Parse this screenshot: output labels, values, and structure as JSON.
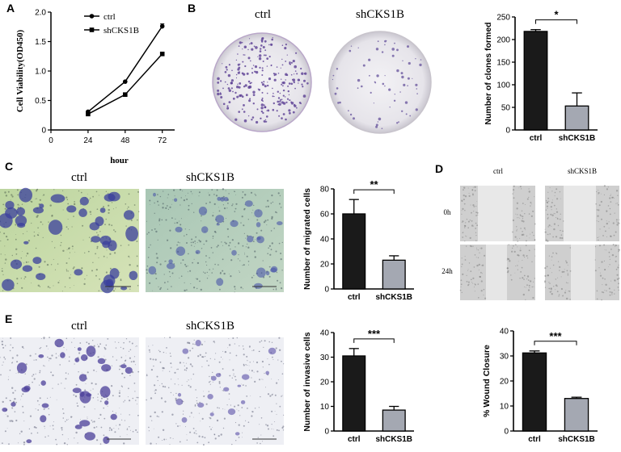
{
  "panels": {
    "A": {
      "letter": "A"
    },
    "B": {
      "letter": "B",
      "micro_labels": [
        "ctrl",
        "shCKS1B"
      ]
    },
    "C": {
      "letter": "C",
      "micro_labels": [
        "ctrl",
        "shCKS1B"
      ]
    },
    "D": {
      "letter": "D",
      "col_labels": [
        "ctrl",
        "shCKS1B"
      ],
      "row_labels": [
        "0h",
        "24h"
      ]
    },
    "E": {
      "letter": "E",
      "micro_labels": [
        "ctrl",
        "shCKS1B"
      ]
    }
  },
  "chart_data": [
    {
      "id": "A",
      "type": "line",
      "xlabel": "hour",
      "ylabel": "Cell Viability(OD450)",
      "x": [
        24,
        48,
        72
      ],
      "xlim": [
        0,
        80
      ],
      "ylim": [
        0,
        2.0
      ],
      "xticks": [
        0,
        24,
        48,
        72
      ],
      "yticks": [
        0.0,
        0.5,
        1.0,
        1.5,
        2.0
      ],
      "ytick_labels": [
        "0",
        "0.5",
        "1.0",
        "1.5",
        "2.0"
      ],
      "legend_position": "top-left",
      "series": [
        {
          "name": "ctrl",
          "marker": "circle",
          "values": [
            0.31,
            0.82,
            1.76
          ],
          "errors": [
            0.01,
            0.01,
            0.04
          ]
        },
        {
          "name": "shCKS1B",
          "marker": "square",
          "values": [
            0.27,
            0.6,
            1.29
          ],
          "errors": [
            0.01,
            0.01,
            0.02
          ]
        }
      ]
    },
    {
      "id": "B",
      "type": "bar",
      "ylabel": "Number of clones formed",
      "categories": [
        "ctrl",
        "shCKS1B"
      ],
      "values": [
        218,
        53
      ],
      "errors": [
        4,
        29
      ],
      "colors": [
        "#1a1a1a",
        "#a4a8b2"
      ],
      "ylim": [
        0,
        250
      ],
      "yticks": [
        0,
        50,
        100,
        150,
        200,
        250
      ],
      "significance": "*"
    },
    {
      "id": "C",
      "type": "bar",
      "ylabel": "Number of migrated cells",
      "categories": [
        "ctrl",
        "shCKS1B"
      ],
      "values": [
        60,
        23
      ],
      "errors": [
        11.5,
        3.5
      ],
      "colors": [
        "#1a1a1a",
        "#a4a8b2"
      ],
      "ylim": [
        0,
        80
      ],
      "yticks": [
        0,
        20,
        40,
        60,
        80
      ],
      "significance": "**"
    },
    {
      "id": "E",
      "type": "bar",
      "ylabel": "Number of invasive cells",
      "categories": [
        "ctrl",
        "shCKS1B"
      ],
      "values": [
        30.5,
        8.5
      ],
      "errors": [
        3,
        1.5
      ],
      "colors": [
        "#1a1a1a",
        "#a4a8b2"
      ],
      "ylim": [
        0,
        40
      ],
      "yticks": [
        0,
        10,
        20,
        30,
        40
      ],
      "significance": "***"
    },
    {
      "id": "D",
      "type": "bar",
      "ylabel": "% Wound Closure",
      "categories": [
        "ctrl",
        "shCKS1B"
      ],
      "values": [
        31.2,
        13
      ],
      "errors": [
        0.8,
        0.5
      ],
      "colors": [
        "#1a1a1a",
        "#a4a8b2"
      ],
      "ylim": [
        0,
        40
      ],
      "yticks": [
        0,
        10,
        20,
        30,
        40
      ],
      "significance": "***"
    }
  ]
}
